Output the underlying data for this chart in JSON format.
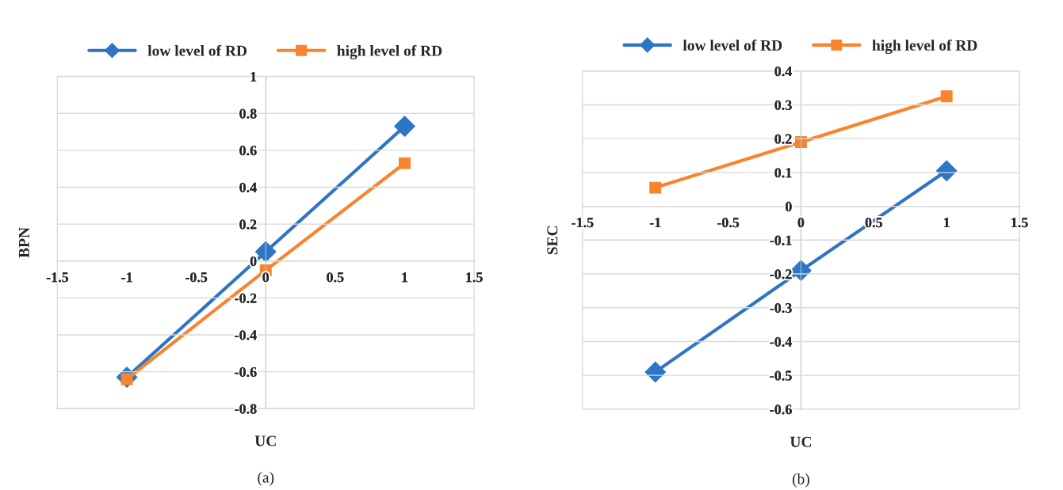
{
  "chart_data": [
    {
      "type": "line",
      "xlabel": "UC",
      "ylabel": "BPN",
      "x": [
        -1,
        0,
        1
      ],
      "xlim": [
        -1.5,
        1.5
      ],
      "xticks": [
        -1.5,
        -1,
        -0.5,
        0,
        0.5,
        1,
        1.5
      ],
      "ylim": [
        -0.8,
        1
      ],
      "yticks": [
        -0.8,
        -0.6,
        -0.4,
        -0.2,
        0,
        0.2,
        0.4,
        0.6,
        0.8,
        1
      ],
      "grid": "y",
      "legend": "top",
      "annotations": [
        "(a)"
      ],
      "series": [
        {
          "name": "low level of RD",
          "color": "#2e75c6",
          "marker": "diamond",
          "values": [
            -0.63,
            0.05,
            0.73
          ]
        },
        {
          "name": "high level of RD",
          "color": "#f7852f",
          "marker": "square",
          "values": [
            -0.64,
            -0.05,
            0.53
          ]
        }
      ]
    },
    {
      "type": "line",
      "xlabel": "UC",
      "ylabel": "SEC",
      "x": [
        -1,
        0,
        1
      ],
      "xlim": [
        -1.5,
        1.5
      ],
      "xticks": [
        -1.5,
        -1,
        -0.5,
        0,
        0.5,
        1,
        1.5
      ],
      "ylim": [
        -0.6,
        0.4
      ],
      "yticks": [
        -0.6,
        -0.5,
        -0.4,
        -0.3,
        -0.2,
        -0.1,
        0,
        0.1,
        0.2,
        0.3,
        0.4
      ],
      "grid": "y",
      "legend": "top",
      "annotations": [
        "(b)"
      ],
      "series": [
        {
          "name": "low level of RD",
          "color": "#2e75c6",
          "marker": "diamond",
          "values": [
            -0.49,
            -0.19,
            0.105
          ]
        },
        {
          "name": "high level of RD",
          "color": "#f7852f",
          "marker": "square",
          "values": [
            0.055,
            0.19,
            0.325
          ]
        }
      ]
    }
  ]
}
